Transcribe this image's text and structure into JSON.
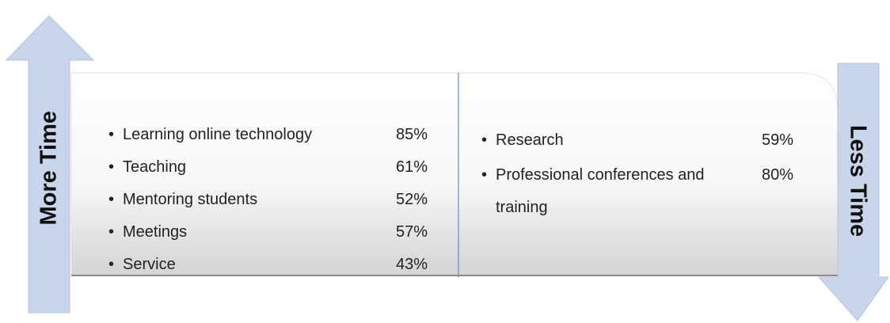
{
  "left_arrow": {
    "label": "More Time"
  },
  "right_arrow": {
    "label": "Less Time"
  },
  "left_items": [
    {
      "label": "Learning online technology",
      "value": "85%"
    },
    {
      "label": "Teaching",
      "value": "61%"
    },
    {
      "label": "Mentoring students",
      "value": "52%"
    },
    {
      "label": "Meetings",
      "value": "57%"
    },
    {
      "label": "Service",
      "value": "43%"
    }
  ],
  "right_items": [
    {
      "label": "Research",
      "value": "59%"
    },
    {
      "label": "Professional conferences and training",
      "value": "80%"
    }
  ]
}
